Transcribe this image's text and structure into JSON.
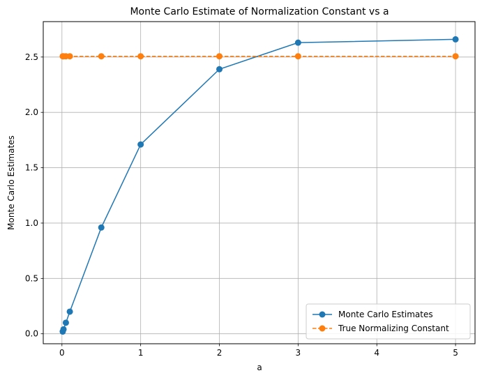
{
  "chart_data": {
    "type": "line",
    "title": "Monte Carlo Estimate of Normalization Constant vs a",
    "xlabel": "a",
    "ylabel": "Monte Carlo Estimates",
    "xlim": [
      -0.2375,
      5.2475
    ],
    "ylim": [
      -0.09,
      2.82
    ],
    "xticks": [
      0,
      1,
      2,
      3,
      4,
      5
    ],
    "yticks": [
      0.0,
      0.5,
      1.0,
      1.5,
      2.0,
      2.5
    ],
    "xtick_labels": [
      "0",
      "1",
      "2",
      "3",
      "4",
      "5"
    ],
    "ytick_labels": [
      "0.0",
      "0.5",
      "1.0",
      "1.5",
      "2.0",
      "2.5"
    ],
    "grid": true,
    "legend_position": "lower-right",
    "series": [
      {
        "name": "Monte Carlo Estimates",
        "color": "#1f77b4",
        "line_style": "solid",
        "marker": "circle",
        "x": [
          0.01,
          0.02,
          0.05,
          0.1,
          0.5,
          1,
          2,
          3,
          5
        ],
        "y": [
          0.02,
          0.04,
          0.1,
          0.2,
          0.96,
          1.71,
          2.39,
          2.63,
          2.66
        ]
      },
      {
        "name": "True Normalizing Constant",
        "color": "#ff7f0e",
        "line_style": "dashed",
        "marker": "circle",
        "x": [
          0.01,
          0.02,
          0.05,
          0.1,
          0.5,
          1,
          2,
          3,
          5
        ],
        "y": [
          2.507,
          2.507,
          2.507,
          2.507,
          2.507,
          2.507,
          2.507,
          2.507,
          2.507
        ]
      }
    ]
  }
}
